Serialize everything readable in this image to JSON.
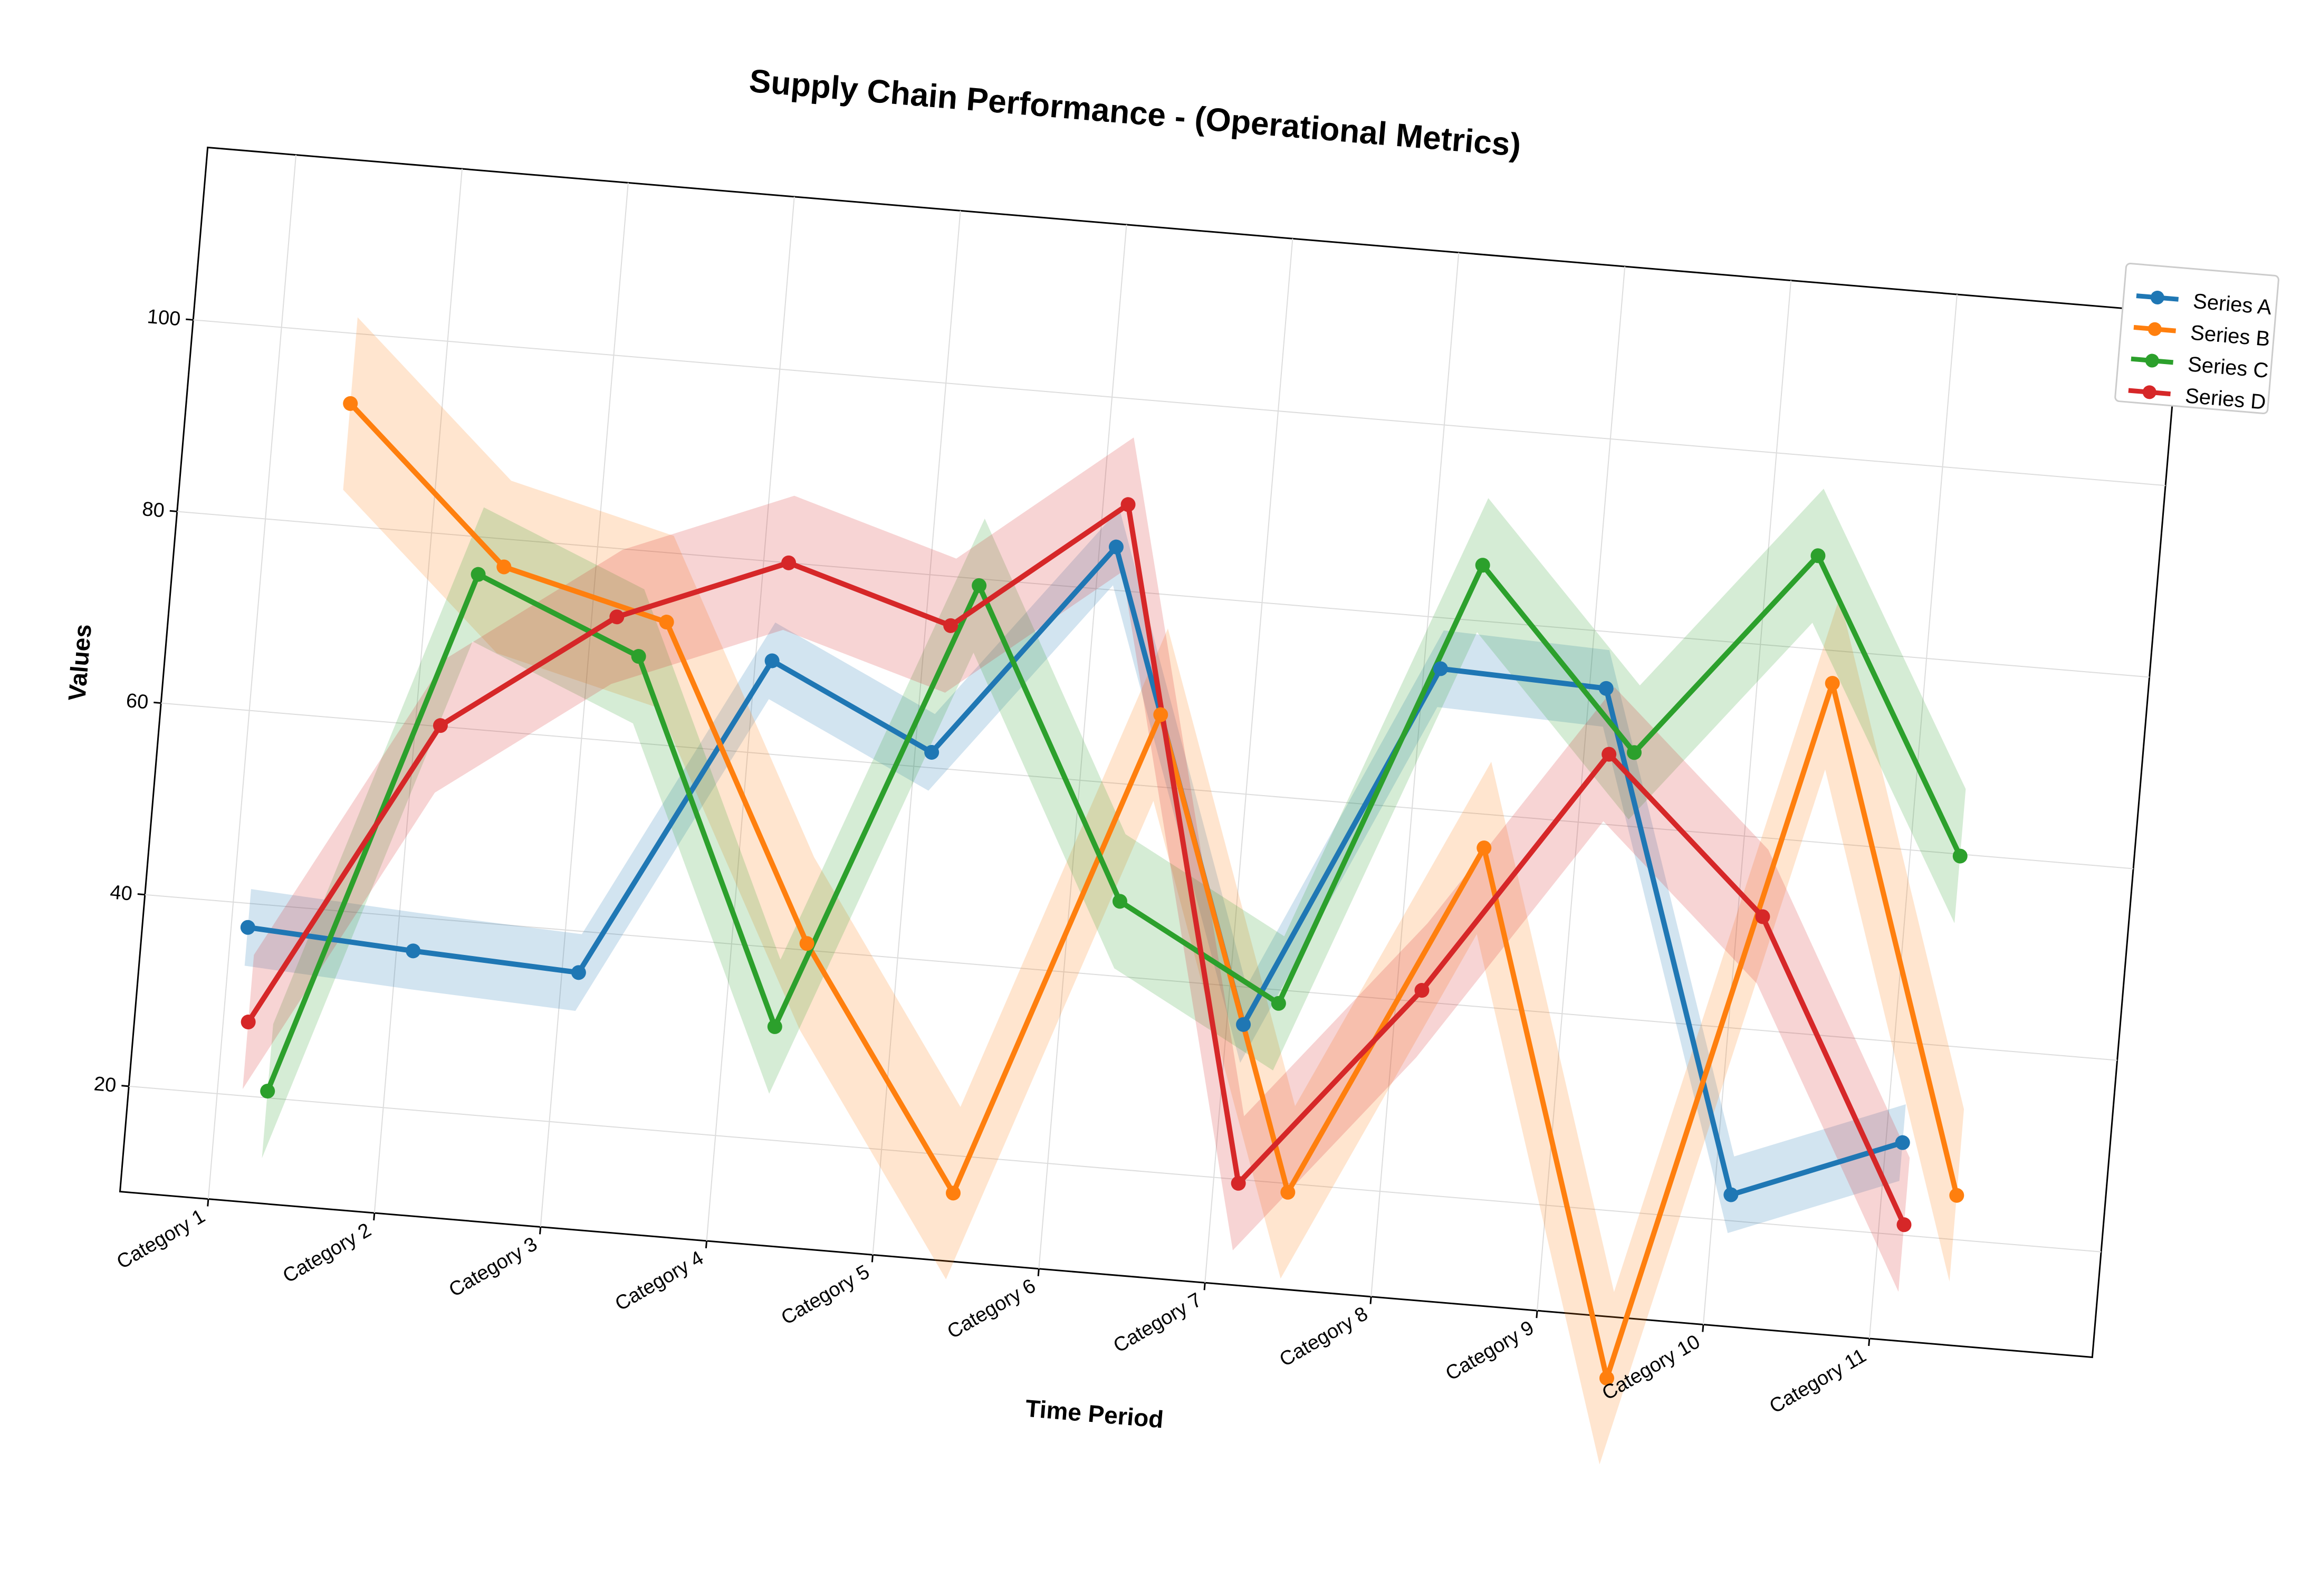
{
  "chart_data": {
    "type": "line",
    "title": "Supply Chain Performance - (Operational Metrics)",
    "xlabel": "Time Period",
    "ylabel": "Values",
    "categories": [
      "Category 1",
      "Category 2",
      "Category 3",
      "Category 4",
      "Category 5",
      "Category 6",
      "Category 7",
      "Category 8",
      "Category 9",
      "Category 10",
      "Category 11"
    ],
    "yticks": [
      "20",
      "40",
      "60",
      "80",
      "100"
    ],
    "ylim": [
      9,
      118
    ],
    "grid": true,
    "legend_position": "outside-top-right",
    "series": [
      {
        "name": "Series A",
        "color": "#1f77b4",
        "offset": 0.1,
        "values": [
          37.5,
          36.5,
          35.7,
          69.7,
          61.6,
          84.5,
          36.1,
          74.7,
          74.1,
          22.7,
          29.6
        ],
        "band": 4
      },
      {
        "name": "Series B",
        "color": "#ff7f0e",
        "offset": 0.45,
        "values": [
          92.7,
          77.1,
          72.8,
          40.7,
          16.1,
          67.5,
          19.1,
          56.5,
          2.6,
          76.6,
          24.6
        ],
        "band": 9
      },
      {
        "name": "Series C",
        "color": "#2ca02c",
        "offset": 0.3,
        "values": [
          20.7,
          76.1,
          69.0,
          31.8,
          79.3,
          47.8,
          38.6,
          85.8,
          67.7,
          89.7,
          59.8
        ],
        "band": 7
      },
      {
        "name": "Series D",
        "color": "#d62728",
        "offset": 0.15,
        "values": [
          27.7,
          60.1,
          72.9,
          80.0,
          74.9,
          89.0,
          19.6,
          41.2,
          67.3,
          51.8,
          21.1
        ],
        "band": 7
      }
    ]
  }
}
